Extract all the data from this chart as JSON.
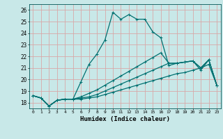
{
  "xlabel": "Humidex (Indice chaleur)",
  "bg_color": "#c8e8e8",
  "grid_color": "#d8a8a8",
  "line_color": "#007070",
  "xlim": [
    -0.5,
    23.5
  ],
  "ylim": [
    17.5,
    26.5
  ],
  "xticks": [
    0,
    1,
    2,
    3,
    4,
    5,
    6,
    7,
    8,
    9,
    10,
    11,
    12,
    13,
    14,
    15,
    16,
    17,
    18,
    19,
    20,
    21,
    22,
    23
  ],
  "yticks": [
    18,
    19,
    20,
    21,
    22,
    23,
    24,
    25,
    26
  ],
  "series": [
    [
      18.6,
      18.4,
      17.7,
      18.2,
      18.3,
      18.3,
      19.8,
      21.3,
      22.2,
      23.4,
      25.8,
      25.2,
      25.6,
      25.2,
      25.2,
      24.1,
      23.6,
      21.2,
      21.4,
      21.5,
      21.6,
      20.8,
      21.7,
      19.5
    ],
    [
      18.6,
      18.4,
      17.7,
      18.2,
      18.3,
      18.3,
      18.3,
      18.4,
      18.5,
      18.7,
      18.9,
      19.1,
      19.3,
      19.5,
      19.7,
      19.9,
      20.1,
      20.3,
      20.5,
      20.6,
      20.8,
      21.0,
      21.3,
      19.5
    ],
    [
      18.6,
      18.4,
      17.7,
      18.2,
      18.3,
      18.3,
      18.4,
      18.5,
      18.7,
      19.0,
      19.3,
      19.6,
      19.9,
      20.2,
      20.5,
      20.8,
      21.1,
      21.4,
      21.4,
      21.5,
      21.6,
      21.0,
      21.7,
      19.5
    ],
    [
      18.6,
      18.4,
      17.7,
      18.2,
      18.3,
      18.3,
      18.5,
      18.8,
      19.1,
      19.5,
      19.9,
      20.3,
      20.7,
      21.1,
      21.5,
      21.9,
      22.3,
      21.4,
      21.4,
      21.5,
      21.6,
      21.0,
      21.7,
      19.5
    ]
  ]
}
